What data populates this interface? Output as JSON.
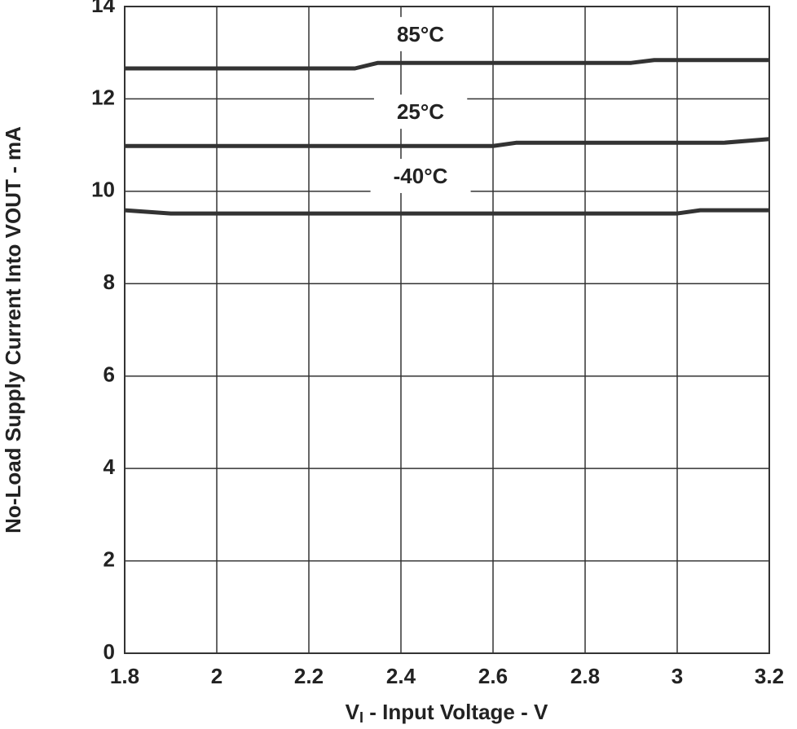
{
  "chart_data": {
    "type": "line",
    "y_label": "No-Load Supply Current Into VOUT - mA",
    "x_label_main": "V",
    "x_label_sub": "I",
    "x_label_rest": " - Input Voltage - V",
    "xlim": [
      1.8,
      3.2
    ],
    "xticks": [
      1.8,
      2,
      2.2,
      2.4,
      2.6,
      2.8,
      3,
      3.2
    ],
    "ylim": [
      0,
      14
    ],
    "yticks": [
      0,
      2,
      4,
      6,
      8,
      10,
      12,
      14
    ],
    "grid": true,
    "series": [
      {
        "name": "85°C",
        "color": "#333333",
        "x": [
          1.8,
          2.3,
          2.35,
          2.9,
          2.95,
          3.2
        ],
        "values": [
          12.66,
          12.66,
          12.78,
          12.78,
          12.84,
          12.84
        ]
      },
      {
        "name": "25°C",
        "color": "#333333",
        "x": [
          1.8,
          2.6,
          2.65,
          3.1,
          3.2
        ],
        "values": [
          10.98,
          10.98,
          11.05,
          11.05,
          11.13
        ]
      },
      {
        "name": "-40°C",
        "color": "#333333",
        "x": [
          1.8,
          1.9,
          3.0,
          3.05,
          3.2
        ],
        "values": [
          9.59,
          9.52,
          9.52,
          9.59,
          9.59
        ]
      }
    ]
  }
}
